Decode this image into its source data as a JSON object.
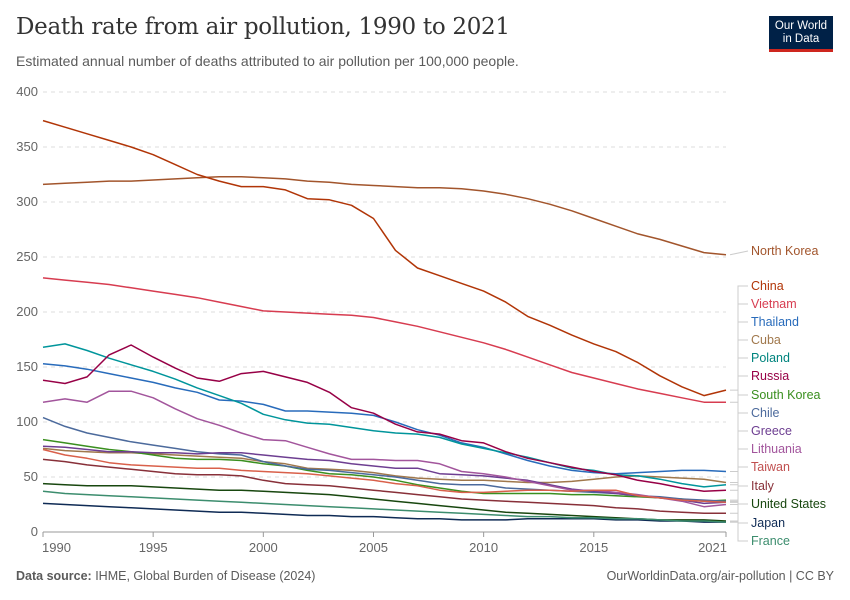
{
  "header": {
    "title": "Death rate from air pollution, 1990 to 2021",
    "subtitle": "Estimated annual number of deaths attributed to air pollution per 100,000 people.",
    "logo_line1": "Our World",
    "logo_line2": "in Data"
  },
  "footer": {
    "source_label": "Data source:",
    "source_text": " IHME, Global Burden of Disease (2024)",
    "url": "OurWorldinData.org/air-pollution | CC BY"
  },
  "chart_data": {
    "type": "line",
    "title": "Death rate from air pollution, 1990 to 2021",
    "xlabel": "",
    "ylabel": "",
    "xlim": [
      1990,
      2021
    ],
    "ylim": [
      0,
      400
    ],
    "x_ticks": [
      1990,
      1995,
      2000,
      2005,
      2010,
      2015,
      2021
    ],
    "y_ticks": [
      0,
      50,
      100,
      150,
      200,
      250,
      300,
      350,
      400
    ],
    "grid": "horizontal-dashed",
    "legend": "right-end-labels",
    "x": [
      1990,
      1991,
      1992,
      1993,
      1994,
      1995,
      1996,
      1997,
      1998,
      1999,
      2000,
      2001,
      2002,
      2003,
      2004,
      2005,
      2006,
      2007,
      2008,
      2009,
      2010,
      2011,
      2012,
      2013,
      2014,
      2015,
      2016,
      2017,
      2018,
      2019,
      2020,
      2021
    ],
    "series": [
      {
        "name": "North Korea",
        "color": "#a2559c",
        "values": [
          316,
          317,
          318,
          319,
          319,
          320,
          321,
          322,
          323,
          323,
          322,
          321,
          319,
          318,
          316,
          315,
          314,
          313,
          313,
          312,
          310,
          307,
          303,
          298,
          292,
          285,
          278,
          271,
          266,
          260,
          254,
          252
        ]
      },
      {
        "name": "China",
        "color": "#b13507",
        "values": [
          374,
          368,
          362,
          356,
          350,
          343,
          334,
          325,
          319,
          314,
          314,
          311,
          303,
          302,
          297,
          285,
          256,
          240,
          233,
          226,
          219,
          209,
          196,
          188,
          179,
          171,
          164,
          154,
          142,
          132,
          124,
          129
        ]
      },
      {
        "name": "Vietnam",
        "color": "#e56e5a",
        "values": [
          231,
          229,
          227,
          225,
          222,
          219,
          216,
          213,
          209,
          205,
          201,
          200,
          199,
          198,
          197,
          195,
          191,
          187,
          182,
          177,
          172,
          166,
          159,
          152,
          145,
          140,
          135,
          130,
          126,
          122,
          118,
          118
        ]
      },
      {
        "name": "Thailand",
        "color": "#286bbb",
        "values": [
          153,
          151,
          148,
          144,
          140,
          136,
          131,
          127,
          120,
          119,
          116,
          110,
          110,
          109,
          108,
          106,
          100,
          93,
          88,
          81,
          77,
          71,
          65,
          60,
          56,
          54,
          53,
          54,
          55,
          56,
          56,
          55
        ]
      },
      {
        "name": "Cuba",
        "color": "#a0784c",
        "values": [
          76,
          74,
          73,
          72,
          72,
          71,
          70,
          69,
          68,
          67,
          64,
          62,
          58,
          57,
          56,
          54,
          51,
          49,
          48,
          47,
          47,
          46,
          45,
          45,
          46,
          48,
          50,
          51,
          50,
          49,
          48,
          45
        ]
      },
      {
        "name": "Poland",
        "color": "#00847e",
        "values": [
          168,
          171,
          165,
          158,
          152,
          146,
          139,
          131,
          124,
          117,
          107,
          102,
          99,
          98,
          95,
          92,
          90,
          89,
          86,
          80,
          76,
          72,
          68,
          63,
          58,
          56,
          52,
          51,
          48,
          44,
          41,
          43
        ]
      },
      {
        "name": "Russia",
        "color": "#970046",
        "values": [
          138,
          135,
          141,
          161,
          170,
          159,
          149,
          140,
          137,
          144,
          146,
          141,
          136,
          127,
          113,
          108,
          98,
          91,
          89,
          83,
          81,
          73,
          67,
          63,
          59,
          55,
          52,
          47,
          44,
          40,
          37,
          38
        ]
      },
      {
        "name": "South Korea",
        "color": "#38aaba",
        "values": [
          84,
          81,
          78,
          75,
          73,
          70,
          67,
          66,
          66,
          65,
          62,
          60,
          56,
          53,
          52,
          50,
          47,
          43,
          40,
          37,
          35,
          35,
          35,
          35,
          34,
          34,
          33,
          32,
          31,
          30,
          28,
          29
        ]
      },
      {
        "name": "Chile",
        "color": "#4c6a9c",
        "values": [
          104,
          96,
          90,
          86,
          82,
          79,
          76,
          73,
          71,
          70,
          64,
          60,
          57,
          56,
          54,
          52,
          50,
          47,
          44,
          43,
          43,
          40,
          39,
          38,
          37,
          36,
          35,
          33,
          32,
          30,
          29,
          28
        ]
      },
      {
        "name": "Greece",
        "color": "#6d3e91",
        "values": [
          78,
          77,
          75,
          73,
          73,
          72,
          72,
          71,
          72,
          72,
          70,
          68,
          66,
          65,
          62,
          60,
          58,
          58,
          53,
          52,
          51,
          49,
          47,
          43,
          39,
          37,
          35,
          33,
          31,
          29,
          26,
          27
        ]
      },
      {
        "name": "Lithuania",
        "color": "#b16214",
        "values": [
          118,
          121,
          118,
          128,
          128,
          122,
          112,
          103,
          97,
          90,
          84,
          83,
          77,
          71,
          66,
          66,
          65,
          65,
          62,
          55,
          53,
          50,
          46,
          42,
          38,
          38,
          36,
          34,
          31,
          28,
          23,
          25
        ]
      },
      {
        "name": "Taiwan",
        "color": "#c15065",
        "values": [
          75,
          70,
          67,
          63,
          61,
          60,
          59,
          58,
          58,
          56,
          55,
          54,
          53,
          51,
          49,
          47,
          44,
          42,
          38,
          36,
          36,
          37,
          38,
          38,
          37,
          38,
          38,
          33,
          31,
          29,
          28,
          27
        ]
      },
      {
        "name": "Italy",
        "color": "#883039",
        "values": [
          66,
          64,
          61,
          59,
          57,
          55,
          53,
          52,
          52,
          51,
          47,
          44,
          43,
          42,
          40,
          38,
          36,
          34,
          32,
          30,
          29,
          28,
          27,
          26,
          25,
          24,
          22,
          21,
          19,
          18,
          17,
          17
        ]
      },
      {
        "name": "United States",
        "color": "#18470f",
        "values": [
          44,
          43,
          42,
          42,
          42,
          41,
          40,
          39,
          38,
          38,
          37,
          36,
          35,
          34,
          32,
          30,
          28,
          26,
          24,
          22,
          20,
          18,
          17,
          16,
          15,
          14,
          13,
          12,
          11,
          11,
          11,
          10
        ]
      },
      {
        "name": "Japan",
        "color": "#0f2b55",
        "values": [
          26,
          25,
          24,
          23,
          22,
          21,
          20,
          19,
          18,
          18,
          17,
          16,
          15,
          15,
          14,
          14,
          13,
          12,
          12,
          11,
          11,
          11,
          12,
          12,
          12,
          12,
          11,
          11,
          10,
          10,
          9,
          9
        ]
      },
      {
        "name": "France",
        "color": "#3c8d6e",
        "values": [
          37,
          35,
          34,
          33,
          32,
          31,
          30,
          29,
          28,
          27,
          26,
          25,
          24,
          23,
          22,
          21,
          20,
          19,
          18,
          17,
          16,
          15,
          14,
          14,
          13,
          13,
          12,
          12,
          11,
          10,
          10,
          9
        ]
      }
    ]
  }
}
